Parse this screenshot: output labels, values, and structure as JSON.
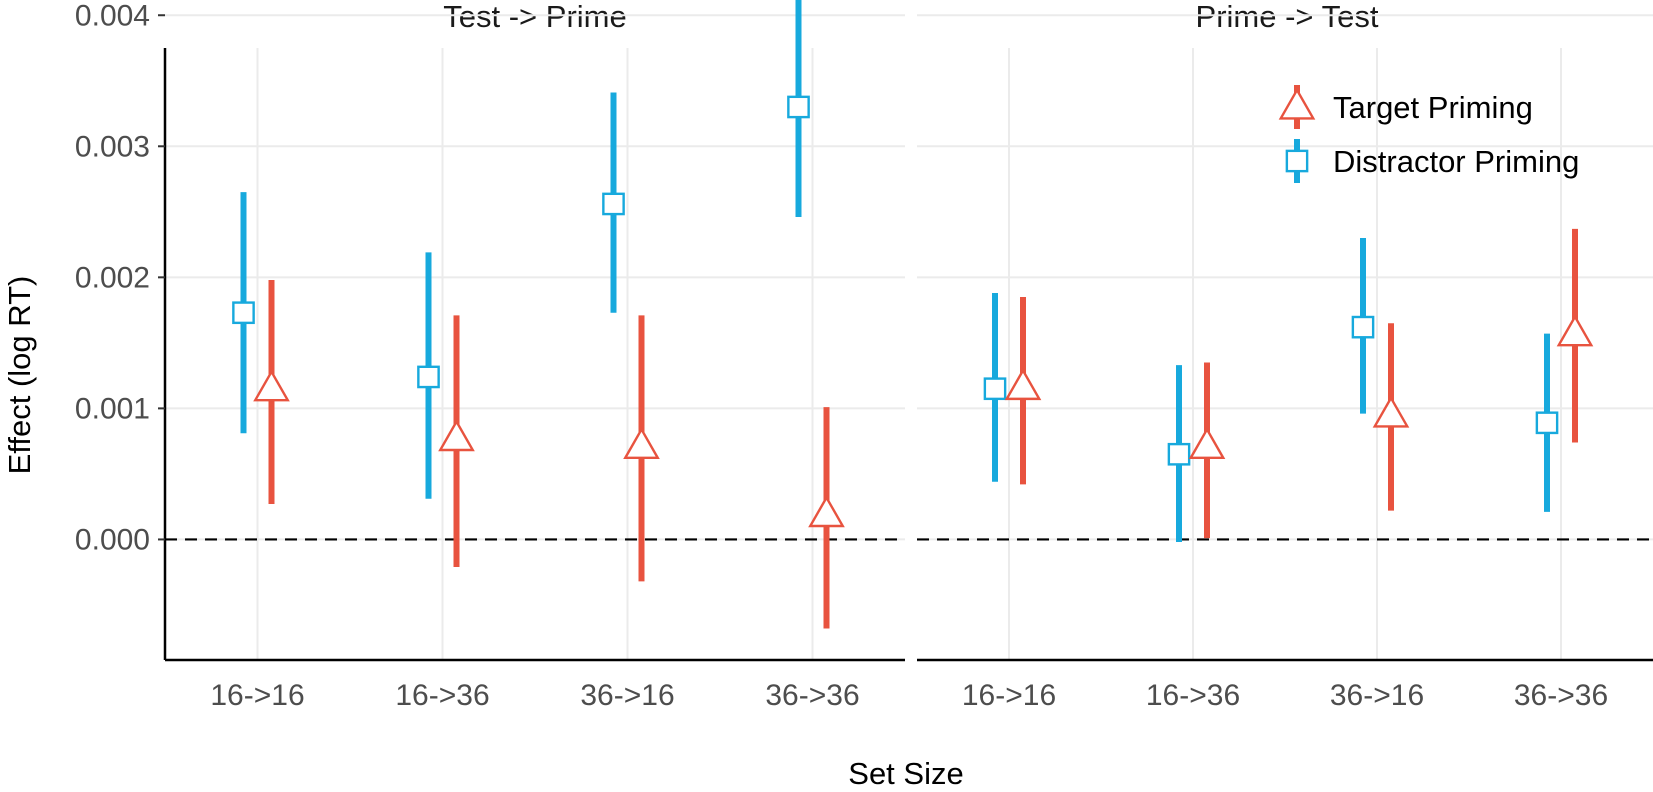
{
  "chart_data": {
    "type": "scatter",
    "subtype": "point-range (point estimate with error bars), faceted",
    "xlabel": "Set Size",
    "ylabel": "Effect (log RT)",
    "ylim": [
      -0.00092,
      0.00375
    ],
    "y_ticks": [
      0.0,
      0.001,
      0.002,
      0.003,
      0.004
    ],
    "y_tick_labels": [
      "0.000",
      "0.001",
      "0.002",
      "0.003",
      "0.004"
    ],
    "categories": [
      "16->16",
      "16->36",
      "36->16",
      "36->36"
    ],
    "reference_line": {
      "y": 0,
      "style": "dashed"
    },
    "grid": true,
    "legend_position": "top-right inside right panel",
    "legend": [
      {
        "name": "Target Priming",
        "marker": "triangle",
        "color": "#E8533F"
      },
      {
        "name": "Distractor Priming",
        "marker": "square",
        "color": "#17A9DD"
      }
    ],
    "panels": [
      {
        "title": "Test -> Prime",
        "series": [
          {
            "name": "Target Priming",
            "values": [
              0.00115,
              0.00077,
              0.00071,
              0.00019
            ],
            "lower": [
              0.00027,
              -0.00021,
              -0.00032,
              -0.00068
            ],
            "upper": [
              0.00198,
              0.00171,
              0.00171,
              0.00101
            ]
          },
          {
            "name": "Distractor Priming",
            "values": [
              0.00173,
              0.00124,
              0.00256,
              0.0033
            ],
            "lower": [
              0.00081,
              0.00031,
              0.00173,
              0.00246
            ],
            "upper": [
              0.00265,
              0.00219,
              0.00341,
              0.00414
            ]
          }
        ]
      },
      {
        "title": "Prime -> Test",
        "series": [
          {
            "name": "Target Priming",
            "values": [
              0.00116,
              0.00071,
              0.00095,
              0.00157
            ],
            "lower": [
              0.00042,
              1e-05,
              0.00022,
              0.00074
            ],
            "upper": [
              0.00185,
              0.00135,
              0.00165,
              0.00237
            ]
          },
          {
            "name": "Distractor Priming",
            "values": [
              0.00115,
              0.00065,
              0.00162,
              0.00089
            ],
            "lower": [
              0.00044,
              -2e-05,
              0.00096,
              0.00021
            ],
            "upper": [
              0.00188,
              0.00133,
              0.0023,
              0.00157
            ]
          }
        ]
      }
    ]
  }
}
